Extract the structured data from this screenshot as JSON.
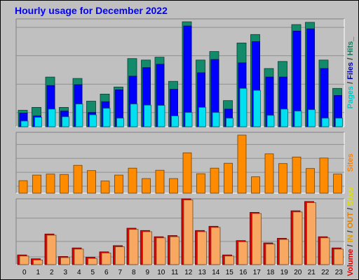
{
  "page": {
    "title": "Hourly usage for December 2022"
  },
  "chart_data": [
    {
      "id": "hits",
      "type": "bar",
      "categories": [
        "0",
        "1",
        "2",
        "3",
        "4",
        "5",
        "6",
        "7",
        "8",
        "9",
        "10",
        "11",
        "12",
        "13",
        "14",
        "15",
        "16",
        "17",
        "18",
        "19",
        "20",
        "21",
        "22",
        "23"
      ],
      "ylim": [
        0,
        380
      ],
      "yticks": [
        50,
        150,
        250,
        350
      ],
      "ytick_labels": [
        "50",
        "150",
        "250",
        "350"
      ],
      "grid": true,
      "legend_parts": [
        {
          "text": "Pages",
          "color": "#00c8c8"
        },
        {
          "text": " / ",
          "color": "#404040"
        },
        {
          "text": "Files",
          "color": "#0000c0"
        },
        {
          "text": " / ",
          "color": "#404040"
        },
        {
          "text": "Hits",
          "color": "#108060"
        },
        {
          "text": "_",
          "color": "#404040"
        }
      ],
      "series": [
        {
          "name": "Hits",
          "color": "#138a6a",
          "values": [
            58,
            68,
            175,
            68,
            170,
            90,
            115,
            140,
            240,
            235,
            245,
            160,
            370,
            235,
            265,
            92,
            295,
            325,
            205,
            230,
            360,
            368,
            235,
            135
          ]
        },
        {
          "name": "Files",
          "color": "#0000ff",
          "values": [
            48,
            38,
            145,
            55,
            148,
            50,
            88,
            130,
            178,
            208,
            220,
            132,
            355,
            190,
            237,
            62,
            225,
            300,
            175,
            175,
            337,
            345,
            205,
            110
          ]
        },
        {
          "name": "Pages",
          "color": "#00e0f0",
          "values": [
            20,
            33,
            62,
            35,
            80,
            42,
            65,
            30,
            80,
            76,
            75,
            38,
            50,
            68,
            50,
            30,
            135,
            128,
            40,
            62,
            55,
            60,
            30,
            30
          ]
        }
      ]
    },
    {
      "id": "sites",
      "type": "bar",
      "categories": [
        "0",
        "1",
        "2",
        "3",
        "4",
        "5",
        "6",
        "7",
        "8",
        "9",
        "10",
        "11",
        "12",
        "13",
        "14",
        "15",
        "16",
        "17",
        "18",
        "19",
        "20",
        "21",
        "22",
        "23"
      ],
      "ylim": [
        0,
        175
      ],
      "yticks": [
        20,
        60,
        100,
        140
      ],
      "ytick_labels": [
        "20",
        "60",
        "100",
        "140"
      ],
      "grid": true,
      "legend_parts": [
        {
          "text": "Sites",
          "color": "#ff8000"
        }
      ],
      "series": [
        {
          "name": "Sites",
          "color": "#ff8c00",
          "values": [
            36,
            52,
            55,
            54,
            80,
            65,
            35,
            52,
            72,
            42,
            66,
            42,
            116,
            56,
            72,
            86,
            167,
            47,
            113,
            85,
            104,
            71,
            101,
            55
          ]
        }
      ]
    },
    {
      "id": "volume",
      "type": "bar",
      "categories": [
        "0",
        "1",
        "2",
        "3",
        "4",
        "5",
        "6",
        "7",
        "8",
        "9",
        "10",
        "11",
        "12",
        "13",
        "14",
        "15",
        "16",
        "17",
        "18",
        "19",
        "20",
        "21",
        "22",
        "23"
      ],
      "ylim": [
        0,
        17
      ],
      "yticks": [
        2,
        6,
        12
      ],
      "ytick_labels": [
        "2M",
        "6M",
        "12M"
      ],
      "grid": true,
      "legend_parts": [
        {
          "text": "Volume",
          "color": "#e00000"
        },
        {
          "text": " / ",
          "color": "#404040"
        },
        {
          "text": "IN",
          "color": "#e0a000"
        },
        {
          "text": " / ",
          "color": "#404040"
        },
        {
          "text": "OUT",
          "color": "#e08000"
        },
        {
          "text": " / ",
          "color": "#404040"
        },
        {
          "text": "Sites",
          "color": "#e0e000"
        }
      ],
      "series": [
        {
          "name": "Volume",
          "color": "#e00000",
          "values": [
            2.5,
            1.5,
            7.9,
            2.1,
            4.3,
            1.9,
            3.3,
            4.9,
            9.4,
            8.8,
            7.2,
            7.5,
            17.0,
            8.8,
            9.9,
            2.5,
            6.2,
            13.5,
            5.6,
            6.8,
            13.9,
            16.3,
            7.2,
            4.3
          ]
        },
        {
          "name": "OUT",
          "color": "#f8a860",
          "values": [
            2.2,
            1.2,
            7.6,
            1.8,
            4.0,
            1.6,
            3.0,
            4.6,
            9.1,
            8.5,
            6.9,
            7.2,
            16.7,
            8.5,
            9.6,
            2.2,
            5.9,
            13.2,
            5.3,
            6.5,
            13.6,
            16.0,
            6.9,
            4.0
          ]
        }
      ]
    }
  ]
}
